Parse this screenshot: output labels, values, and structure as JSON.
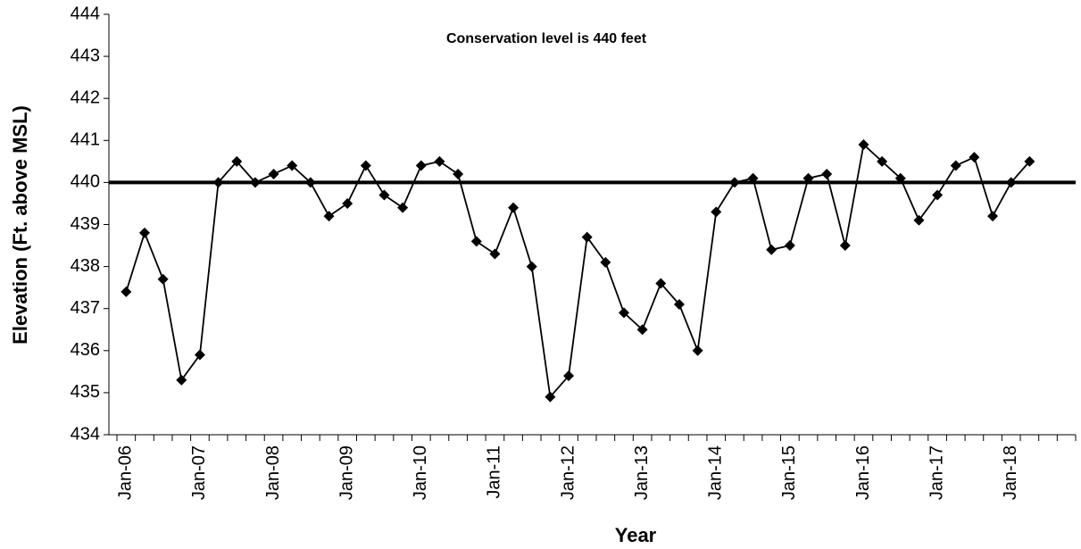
{
  "chart_data": {
    "type": "line",
    "annotation": "Conservation level is 440 feet",
    "x_label": "Year",
    "y_label": "Elevation (Ft. above MSL)",
    "categories": [
      "Jan-06",
      null,
      null,
      null,
      "Jan-07",
      null,
      null,
      null,
      "Jan-08",
      null,
      null,
      null,
      "Jan-09",
      null,
      null,
      null,
      "Jan-10",
      null,
      null,
      null,
      "Jan-11",
      null,
      null,
      null,
      "Jan-12",
      null,
      null,
      null,
      "Jan-13",
      null,
      null,
      null,
      "Jan-14",
      null,
      null,
      null,
      "Jan-15",
      null,
      null,
      null,
      "Jan-16",
      null,
      null,
      null,
      "Jan-17",
      null,
      null,
      null,
      "Jan-18",
      null,
      null,
      null
    ],
    "series": [
      {
        "color": "#000000",
        "values": [
          437.4,
          438.8,
          437.7,
          435.3,
          435.9,
          440.0,
          440.5,
          440.0,
          440.2,
          440.4,
          440.0,
          439.2,
          439.5,
          440.4,
          439.7,
          439.4,
          440.4,
          440.5,
          440.2,
          438.6,
          438.3,
          439.4,
          438.0,
          434.9,
          435.4,
          438.7,
          438.1,
          436.9,
          436.5,
          437.6,
          437.1,
          436.0,
          439.3,
          440.0,
          440.1,
          438.4,
          438.5,
          440.1,
          440.2,
          438.5,
          440.9,
          440.5,
          440.1,
          439.1,
          439.7,
          440.4,
          440.6,
          439.2,
          440.0,
          440.5,
          null,
          null
        ]
      }
    ],
    "reference_line": 440,
    "ylim": [
      434,
      444
    ],
    "yticks": [
      434,
      435,
      436,
      437,
      438,
      439,
      440,
      441,
      442,
      443,
      444
    ],
    "grid": false
  }
}
